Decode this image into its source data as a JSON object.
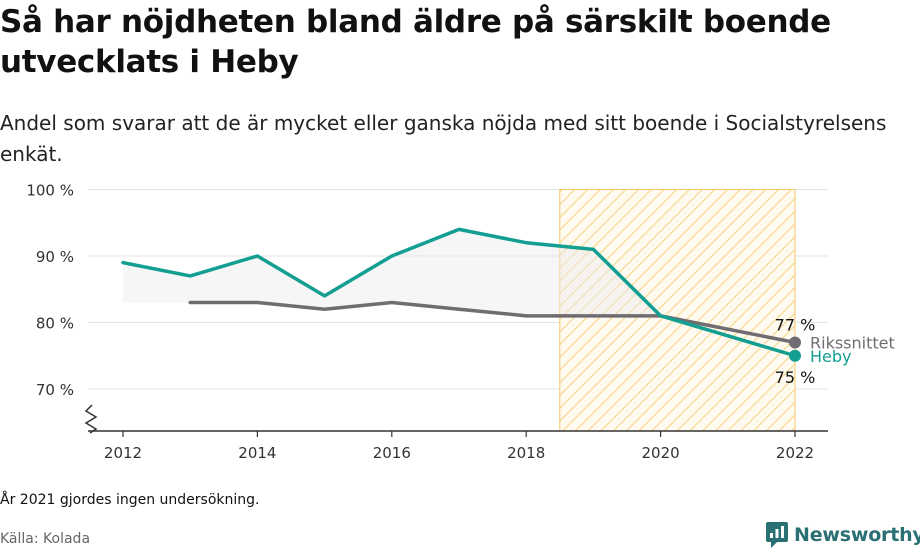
{
  "title": "Så har nöjdheten bland äldre på särskilt boende utvecklats i Heby",
  "subtitle": "Andel som svarar att de är mycket eller ganska nöjda med sitt boende i Socialstyrelsens enkät.",
  "footnote": "År 2021 gjordes ingen undersökning.",
  "source": "Källa: Kolada",
  "brand": {
    "name": "Newsworthy",
    "icon": "newsworthy-logo-icon",
    "color": "#2a6f73"
  },
  "chart_data": {
    "type": "line",
    "x_ticks": [
      "2012",
      "2014",
      "2016",
      "2018",
      "2020",
      "2022"
    ],
    "y_ticks": [
      "70 %",
      "80 %",
      "90 %",
      "100 %"
    ],
    "ylim": [
      70,
      100
    ],
    "grid": true,
    "highlight_range": [
      2018.5,
      2022
    ],
    "series": [
      {
        "name": "Heby",
        "color": "#139e92",
        "x": [
          2012,
          2013,
          2014,
          2015,
          2016,
          2017,
          2018,
          2019,
          2020,
          2022
        ],
        "values": [
          89,
          87,
          90,
          84,
          90,
          94,
          92,
          91,
          81,
          75
        ],
        "end_label": "75 %"
      },
      {
        "name": "Rikssnittet",
        "color": "#6f6c72",
        "x": [
          2013,
          2014,
          2015,
          2016,
          2017,
          2018,
          2019,
          2020,
          2022
        ],
        "values": [
          83,
          83,
          82,
          83,
          82,
          81,
          81,
          81,
          77
        ],
        "end_label": "77 %"
      }
    ]
  }
}
